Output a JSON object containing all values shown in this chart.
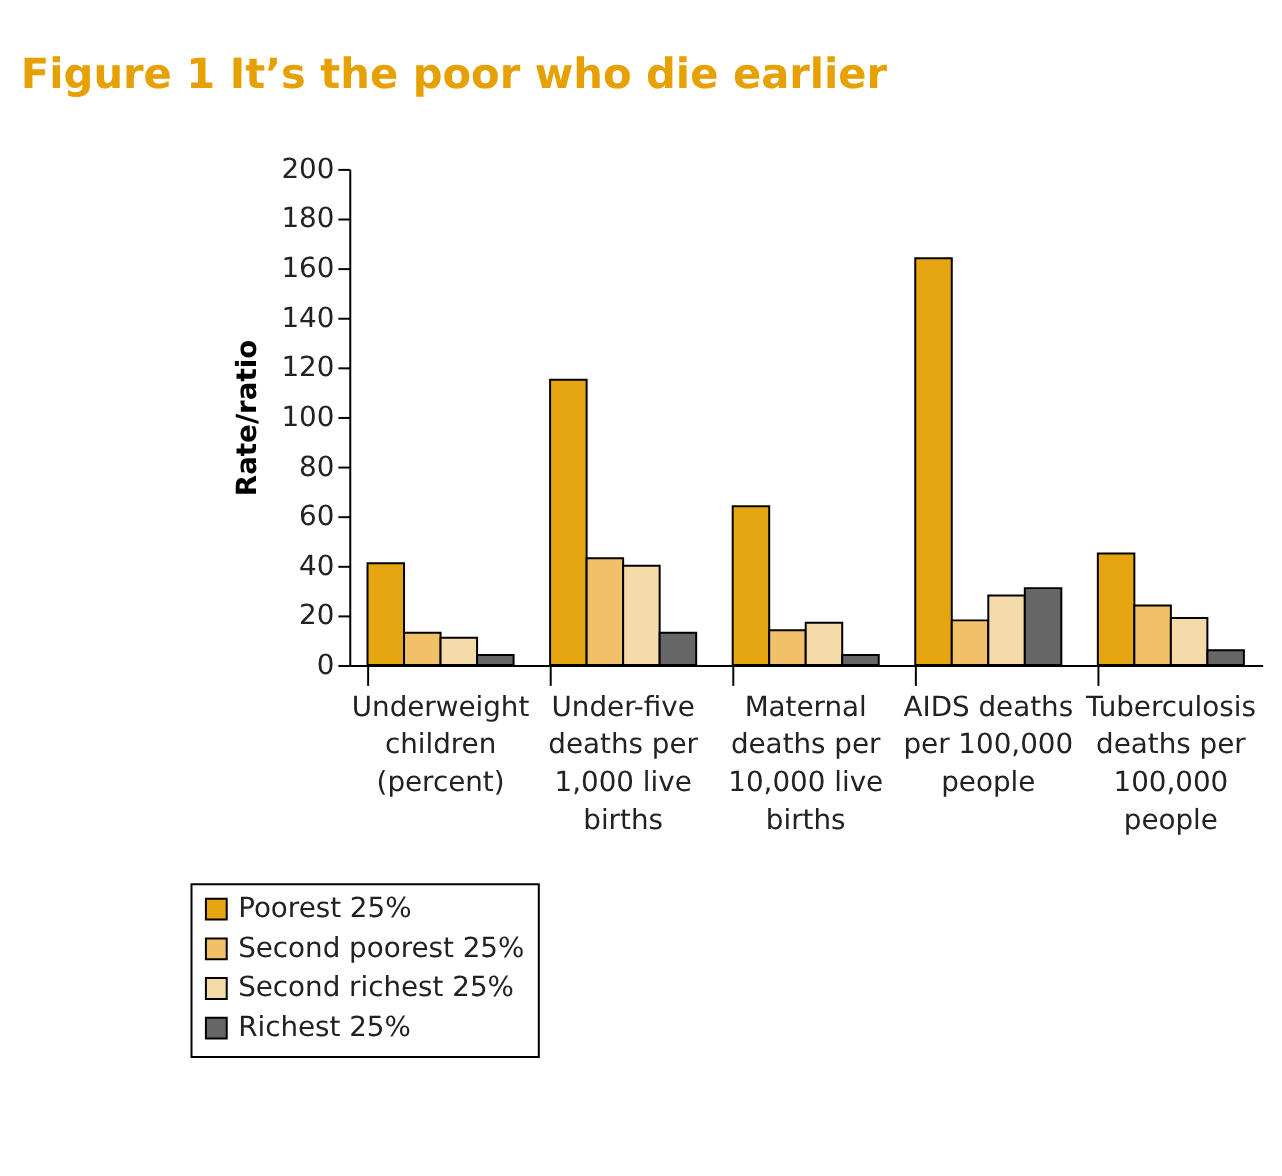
{
  "chart_data": {
    "type": "bar",
    "title": "Figure 1  It’s the poor who die earlier",
    "ylabel": "Rate/ratio",
    "categories": [
      "Underweight children (percent)",
      "Under-five deaths per 1,000 live births",
      "Maternal deaths per 10,000 live births",
      "AIDS deaths per 100,000 people",
      "Tuberculosis deaths per 100,000 people"
    ],
    "series": [
      {
        "name": "Poorest 25%",
        "color": "#e6a612",
        "values": [
          41,
          115,
          64,
          164,
          45
        ]
      },
      {
        "name": "Second poorest 25%",
        "color": "#f0c169",
        "values": [
          13,
          43,
          14,
          18,
          24
        ]
      },
      {
        "name": "Second richest 25%",
        "color": "#f5dbaa",
        "values": [
          11,
          40,
          17,
          28,
          19
        ]
      },
      {
        "name": "Richest 25%",
        "color": "#666666",
        "values": [
          4,
          13,
          4,
          31,
          6
        ]
      }
    ],
    "ylim": [
      0,
      200
    ],
    "yticks": [
      0,
      20,
      40,
      60,
      80,
      100,
      120,
      140,
      160,
      180,
      200
    ],
    "grid": false,
    "legend": "bottom left"
  }
}
